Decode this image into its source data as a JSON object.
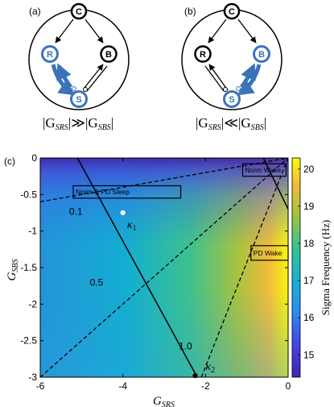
{
  "panels": {
    "a": {
      "label": "(a)",
      "nodes": {
        "C": "C",
        "R": "R",
        "B": "B",
        "S": "S"
      },
      "expr_left": "|G",
      "expr_left_sub": "SRS",
      "expr_mid": "|≫|G",
      "expr_right_sub": "SBS",
      "expr_end": "|"
    },
    "b": {
      "label": "(b)",
      "nodes": {
        "C": "C",
        "R": "R",
        "B": "B",
        "S": "S"
      },
      "expr_left": "|G",
      "expr_left_sub": "SRS",
      "expr_mid": "|≪|G",
      "expr_right_sub": "SBS",
      "expr_end": "|"
    },
    "c": {
      "label": "(c)"
    }
  },
  "colors": {
    "blue_highlight": "#3b73b9",
    "node_edge": "#000000",
    "colormap_low": "#3e26a8",
    "colormap_high": "#f9fb0e"
  },
  "chart_data": {
    "type": "heatmap",
    "xlabel_main": "G",
    "xlabel_sub": "SRS",
    "ylabel_main": "G",
    "ylabel_sub": "SBS",
    "xlim": [
      -6,
      0
    ],
    "ylim": [
      -3,
      0
    ],
    "x_ticks": [
      {
        "v": -6,
        "t": "-6"
      },
      {
        "v": -4,
        "t": "-4"
      },
      {
        "v": -2,
        "t": "-2"
      },
      {
        "v": 0,
        "t": "0"
      }
    ],
    "y_ticks": [
      {
        "v": 0,
        "t": "0"
      },
      {
        "v": -0.5,
        "t": "-0.5"
      },
      {
        "v": -1,
        "t": "-1"
      },
      {
        "v": -1.5,
        "t": "-1.5"
      },
      {
        "v": -2,
        "t": "-2"
      },
      {
        "v": -2.5,
        "t": "-2.5"
      },
      {
        "v": -3,
        "t": "-3"
      }
    ],
    "colorbar": {
      "label": "Sigma Frequency (Hz)",
      "range": [
        14.4,
        20.3
      ],
      "ticks": [
        {
          "v": 15,
          "t": "15"
        },
        {
          "v": 16,
          "t": "16"
        },
        {
          "v": 17,
          "t": "17"
        },
        {
          "v": 18,
          "t": "18"
        },
        {
          "v": 19,
          "t": "19"
        },
        {
          "v": 20,
          "t": "20"
        }
      ]
    },
    "dashed_contours": [
      {
        "label": "0.1",
        "points": [
          [
            -6,
            -0.6
          ],
          [
            0,
            0
          ]
        ],
        "label_at": [
          -5.3,
          -0.78
        ]
      },
      {
        "label": "0.5",
        "points": [
          [
            -6,
            -3
          ],
          [
            0,
            0
          ]
        ],
        "label_at": [
          -4.8,
          -1.75
        ]
      },
      {
        "label": "1.0",
        "points": [
          [
            -2.1,
            -3
          ],
          [
            0,
            0
          ]
        ],
        "label_at": [
          -2.65,
          -2.62
        ]
      }
    ],
    "solid_lines": [
      {
        "points": [
          [
            -5.1,
            0
          ],
          [
            -2.2,
            -3
          ]
        ]
      },
      {
        "points": [
          [
            -0.6,
            0
          ],
          [
            0,
            -0.7
          ]
        ]
      }
    ],
    "regions": [
      {
        "label": "Norm & PD Sleep",
        "x0": -5.2,
        "y0": -0.55,
        "x1": -2.6,
        "y1": -0.38
      },
      {
        "label": "Norm Wake",
        "x0": -1.1,
        "y0": -0.25,
        "x1": -0.05,
        "y1": -0.08
      },
      {
        "label": "PD Wake",
        "x0": -0.9,
        "y0": -1.4,
        "x1": 0,
        "y1": -1.2
      }
    ],
    "points": [
      {
        "label": "κ",
        "sub": "1",
        "x": -4.0,
        "y": -0.75,
        "color": "#ffffff",
        "label_at": [
          -3.9,
          -0.96
        ]
      },
      {
        "label": "κ",
        "sub": "2",
        "x": -2.25,
        "y": -2.98,
        "color": "#000000",
        "label_at": [
          -2.0,
          -2.9
        ]
      }
    ]
  }
}
